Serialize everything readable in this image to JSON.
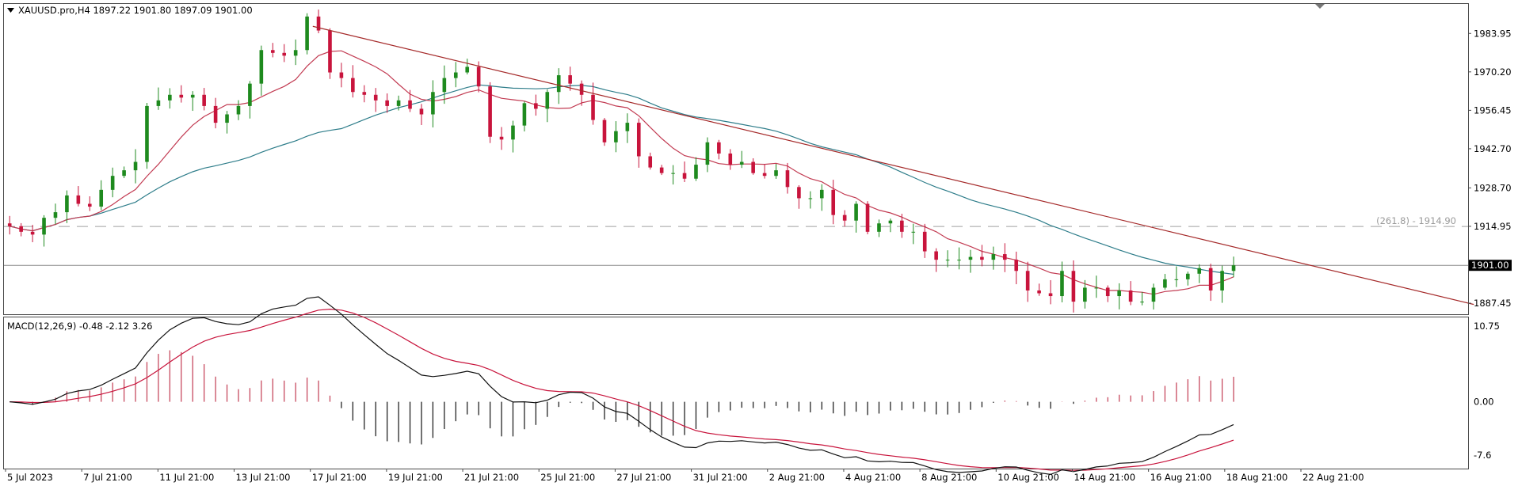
{
  "price_panel": {
    "title": "XAUUSD.pro,H4  1897.22 1901.80 1897.09 1901.00",
    "current_price": "1901.00",
    "fib_label": "(261.8) - 1914.90"
  },
  "macd_panel": {
    "title": "MACD(12,26,9) -0.48 -2.12 3.26"
  },
  "colors": {
    "bull": "#1e8a1e",
    "bear": "#c8143c",
    "ma_fast": "#c23b52",
    "ma_slow": "#2e7d8a",
    "trendline": "#a52a2a",
    "macd_line": "#111111",
    "signal_line": "#c8143c",
    "hist_pos": "#c23b52",
    "hist_neg": "#111111",
    "border": "#4a4a4a",
    "grid_dash": "#a0a0a0"
  },
  "chart_data": [
    {
      "type": "candlestick",
      "title": "XAUUSD.pro,H4  1897.22 1901.80 1897.09 1901.00",
      "x_ticks": [
        "5 Jul 2023",
        "7 Jul 21:00",
        "11 Jul 21:00",
        "13 Jul 21:00",
        "17 Jul 21:00",
        "19 Jul 21:00",
        "21 Jul 21:00",
        "25 Jul 21:00",
        "27 Jul 21:00",
        "31 Jul 21:00",
        "2 Aug 21:00",
        "4 Aug 21:00",
        "8 Aug 21:00",
        "10 Aug 21:00",
        "14 Aug 21:00",
        "16 Aug 21:00",
        "18 Aug 21:00",
        "22 Aug 21:00"
      ],
      "y_ticks": [
        1887.45,
        1901.0,
        1914.95,
        1928.7,
        1942.7,
        1956.45,
        1970.2,
        1983.95
      ],
      "ylim": [
        1883.5,
        1994.5
      ],
      "close_path": [
        1915,
        1913,
        1912,
        1918,
        1920,
        1926,
        1923,
        1922,
        1928,
        1933,
        1935,
        1938,
        1958,
        1960,
        1962,
        1961,
        1962,
        1958,
        1952,
        1955,
        1958,
        1966,
        1978,
        1977,
        1976,
        1978,
        1990,
        1985,
        1970,
        1968,
        1963,
        1962,
        1960,
        1958,
        1960,
        1957,
        1955,
        1963,
        1968,
        1970,
        1972,
        1965,
        1947,
        1946,
        1951,
        1959,
        1957,
        1963,
        1969,
        1966,
        1962,
        1953,
        1945,
        1949,
        1952,
        1940,
        1936,
        1934,
        1934,
        1932,
        1937,
        1945,
        1941,
        1937,
        1938,
        1934,
        1933,
        1935,
        1929,
        1925,
        1925,
        1928,
        1919,
        1917,
        1923,
        1913,
        1916,
        1917,
        1913,
        1913,
        1906,
        1903,
        1903,
        1903,
        1904,
        1903,
        1905,
        1903,
        1899,
        1892,
        1891,
        1890,
        1899,
        1888,
        1893,
        1893,
        1890,
        1892,
        1888,
        1888,
        1893,
        1896,
        1896,
        1898,
        1900,
        1892,
        1899,
        1901
      ],
      "indicators": [
        {
          "name": "MA fast",
          "type": "moving_average",
          "period": 8
        },
        {
          "name": "MA slow",
          "type": "moving_average",
          "period": 30
        }
      ],
      "horizontal_lines": [
        {
          "value": 1914.9,
          "style": "dashed",
          "label": "(261.8) - 1914.90"
        },
        {
          "value": 1901.0,
          "style": "solid",
          "label": "1901.00"
        }
      ],
      "trendline": {
        "from": {
          "x_index": 26.5,
          "y": 1986.5
        },
        "to": {
          "x_index": 128,
          "y": 1887.0
        }
      }
    },
    {
      "type": "macd",
      "title": "MACD(12,26,9) -0.48 -2.12 3.26",
      "y_ticks": [
        -7.6,
        0.0,
        10.75
      ],
      "ylim": [
        -9.5,
        12.0
      ],
      "values": {
        "macd": -0.48,
        "signal": -2.12,
        "histogram": 3.26
      },
      "series": [
        {
          "name": "MACD",
          "type": "line"
        },
        {
          "name": "Signal",
          "type": "line"
        },
        {
          "name": "Histogram",
          "type": "bar"
        }
      ]
    }
  ]
}
